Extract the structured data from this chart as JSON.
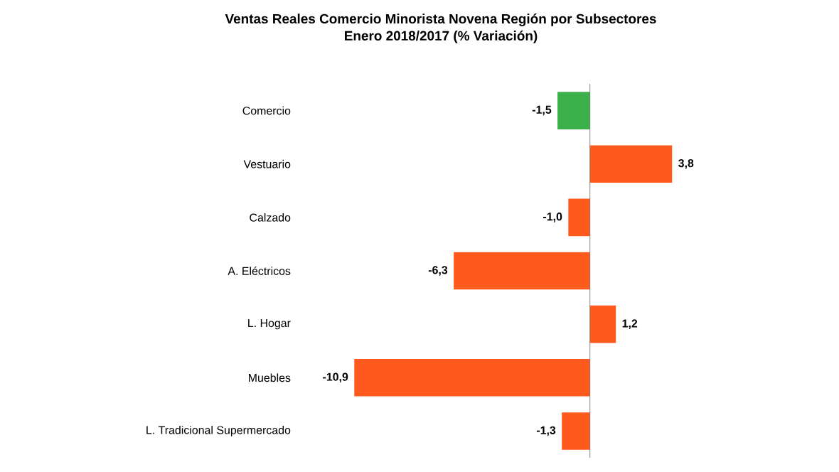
{
  "chart_data": {
    "type": "bar",
    "orientation": "horizontal",
    "title": "Ventas Reales Comercio Minorista Novena Región por Subsectores",
    "subtitle": "Enero 2018/2017 (% Variación)",
    "categories": [
      "Comercio",
      "Vestuario",
      "Calzado",
      "A. Eléctricos",
      "L. Hogar",
      "Muebles",
      "L. Tradicional Supermercado"
    ],
    "values": [
      -1.5,
      3.8,
      -1.0,
      -6.3,
      1.2,
      -10.9,
      -1.3
    ],
    "colors": [
      "#3cb04a",
      "#ff5a1e",
      "#ff5a1e",
      "#ff5a1e",
      "#ff5a1e",
      "#ff5a1e",
      "#ff5a1e"
    ],
    "value_labels": [
      "-1,5",
      "3,8",
      "-1,0",
      "-6,3",
      "1,2",
      "-10,9",
      "-1,3"
    ],
    "tick_labels": "y"
  }
}
